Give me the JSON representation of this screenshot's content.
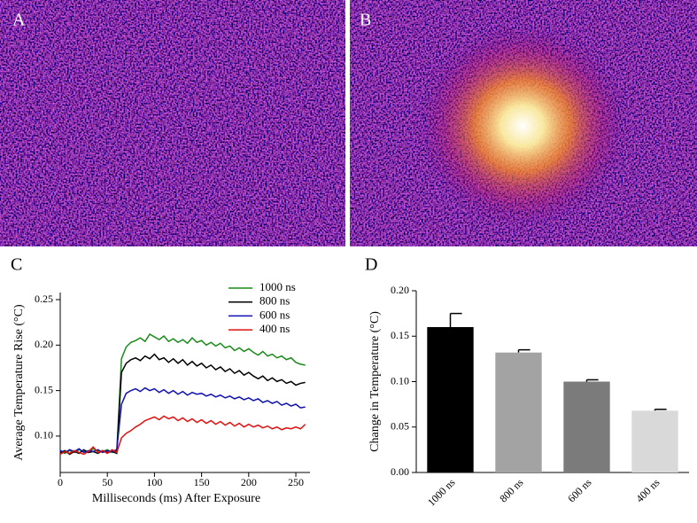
{
  "panel_labels": [
    "A",
    "B",
    "C",
    "D"
  ],
  "chart_data": [
    {
      "type": "line",
      "x_label": "Milliseconds (ms) After Exposure",
      "y_label": "Average Temperature Rise (°C)",
      "x": [
        0,
        5,
        10,
        15,
        20,
        25,
        30,
        35,
        40,
        45,
        50,
        55,
        60,
        65,
        70,
        75,
        80,
        85,
        90,
        95,
        100,
        105,
        110,
        115,
        120,
        125,
        130,
        135,
        140,
        145,
        150,
        155,
        160,
        165,
        170,
        175,
        180,
        185,
        190,
        195,
        200,
        205,
        210,
        215,
        220,
        225,
        230,
        235,
        240,
        245,
        250,
        255,
        260
      ],
      "xlim": [
        0,
        265
      ],
      "xticks": [
        0,
        50,
        100,
        150,
        200,
        250
      ],
      "ylim": [
        0.06,
        0.25
      ],
      "yticks": [
        {
          "value": 0.1,
          "label": "0.10"
        },
        0.15,
        {
          "value": 0.2,
          "label": "0.20"
        },
        0.25
      ],
      "legend": "upper right",
      "series": [
        {
          "name": "1000 ns",
          "color": "#1a8a1a",
          "values": [
            0.083,
            0.081,
            0.084,
            0.082,
            0.085,
            0.083,
            0.082,
            0.086,
            0.084,
            0.083,
            0.085,
            0.082,
            0.084,
            0.185,
            0.198,
            0.203,
            0.205,
            0.208,
            0.204,
            0.212,
            0.209,
            0.206,
            0.21,
            0.204,
            0.207,
            0.203,
            0.206,
            0.202,
            0.208,
            0.203,
            0.205,
            0.2,
            0.203,
            0.199,
            0.202,
            0.197,
            0.199,
            0.194,
            0.197,
            0.193,
            0.196,
            0.192,
            0.189,
            0.193,
            0.188,
            0.19,
            0.186,
            0.188,
            0.184,
            0.186,
            0.181,
            0.179,
            0.178
          ]
        },
        {
          "name": "800 ns",
          "color": "#000000",
          "values": [
            0.082,
            0.084,
            0.08,
            0.083,
            0.081,
            0.085,
            0.082,
            0.083,
            0.081,
            0.084,
            0.082,
            0.083,
            0.081,
            0.17,
            0.18,
            0.184,
            0.186,
            0.183,
            0.188,
            0.185,
            0.19,
            0.184,
            0.186,
            0.181,
            0.185,
            0.18,
            0.184,
            0.178,
            0.182,
            0.177,
            0.18,
            0.175,
            0.178,
            0.173,
            0.176,
            0.171,
            0.174,
            0.169,
            0.172,
            0.167,
            0.17,
            0.166,
            0.163,
            0.166,
            0.161,
            0.164,
            0.16,
            0.162,
            0.158,
            0.16,
            0.156,
            0.158,
            0.159
          ]
        },
        {
          "name": "600 ns",
          "color": "#1010b0",
          "values": [
            0.084,
            0.082,
            0.085,
            0.083,
            0.086,
            0.082,
            0.084,
            0.083,
            0.085,
            0.082,
            0.084,
            0.083,
            0.085,
            0.135,
            0.147,
            0.15,
            0.152,
            0.149,
            0.153,
            0.15,
            0.152,
            0.148,
            0.151,
            0.147,
            0.15,
            0.146,
            0.149,
            0.145,
            0.148,
            0.146,
            0.147,
            0.144,
            0.146,
            0.143,
            0.145,
            0.142,
            0.144,
            0.141,
            0.143,
            0.14,
            0.142,
            0.139,
            0.141,
            0.137,
            0.139,
            0.136,
            0.138,
            0.134,
            0.136,
            0.133,
            0.135,
            0.131,
            0.132
          ]
        },
        {
          "name": "400 ns",
          "color": "#e01010",
          "values": [
            0.08,
            0.083,
            0.081,
            0.084,
            0.082,
            0.08,
            0.083,
            0.088,
            0.082,
            0.084,
            0.081,
            0.085,
            0.082,
            0.098,
            0.103,
            0.106,
            0.11,
            0.113,
            0.117,
            0.119,
            0.121,
            0.118,
            0.122,
            0.119,
            0.121,
            0.117,
            0.12,
            0.116,
            0.119,
            0.115,
            0.118,
            0.114,
            0.117,
            0.113,
            0.116,
            0.112,
            0.115,
            0.111,
            0.114,
            0.11,
            0.113,
            0.11,
            0.112,
            0.109,
            0.111,
            0.108,
            0.11,
            0.107,
            0.109,
            0.108,
            0.11,
            0.108,
            0.113
          ]
        }
      ]
    },
    {
      "type": "bar",
      "y_label": "Change in Temperature (°C)",
      "categories": [
        "1000 ns",
        "800 ns",
        "600 ns",
        "400 ns"
      ],
      "values": [
        0.16,
        0.132,
        0.1,
        0.068
      ],
      "errors": [
        0.015,
        0.003,
        0.002,
        0.0015
      ],
      "colors": [
        "#000000",
        "#a3a3a3",
        "#7b7b7b",
        "#d9d9d9"
      ],
      "ylim": [
        0,
        0.2
      ],
      "yticks": [
        {
          "value": 0,
          "label": "0.00"
        },
        0.05,
        {
          "value": 0.1,
          "label": "0.10"
        },
        0.15,
        {
          "value": 0.2,
          "label": "0.20"
        }
      ]
    }
  ]
}
